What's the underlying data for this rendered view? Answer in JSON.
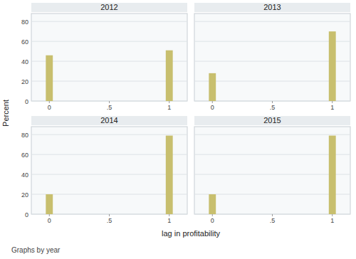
{
  "chart_data": [
    {
      "type": "bar",
      "title": "2012",
      "x": [
        0,
        1
      ],
      "values": [
        46,
        51
      ],
      "color": "#c8bf6e",
      "xlim": [
        -0.15,
        1.15
      ],
      "xticks": [
        0,
        {
          "value": 0.5,
          "label": ".5"
        },
        1
      ],
      "ylim": [
        0,
        88
      ],
      "yticks": [
        0,
        20,
        40,
        60,
        80
      ],
      "grid": true
    },
    {
      "type": "bar",
      "title": "2013",
      "x": [
        0,
        1
      ],
      "values": [
        28,
        70
      ],
      "color": "#c8bf6e",
      "xlim": [
        -0.15,
        1.15
      ],
      "xticks": [
        0,
        {
          "value": 0.5,
          "label": ".5"
        },
        1
      ],
      "ylim": [
        0,
        88
      ],
      "yticks": [
        0,
        20,
        40,
        60,
        80
      ],
      "grid": true,
      "tick_labels": "x"
    },
    {
      "type": "bar",
      "title": "2014",
      "x": [
        0,
        1
      ],
      "values": [
        20,
        79
      ],
      "color": "#c8bf6e",
      "xlim": [
        -0.15,
        1.15
      ],
      "xticks": [
        0,
        {
          "value": 0.5,
          "label": ".5"
        },
        1
      ],
      "ylim": [
        0,
        88
      ],
      "yticks": [
        0,
        20,
        40,
        60,
        80
      ],
      "grid": true
    },
    {
      "type": "bar",
      "title": "2015",
      "x": [
        0,
        1
      ],
      "values": [
        20,
        79
      ],
      "color": "#c8bf6e",
      "xlim": [
        -0.15,
        1.15
      ],
      "xticks": [
        0,
        {
          "value": 0.5,
          "label": ".5"
        },
        1
      ],
      "ylim": [
        0,
        88
      ],
      "yticks": [
        0,
        20,
        40,
        60,
        80
      ],
      "grid": true,
      "tick_labels": "x"
    }
  ],
  "xlabel": "lag in profitability",
  "ylabel": "Percent",
  "annotation": "Graphs by year"
}
